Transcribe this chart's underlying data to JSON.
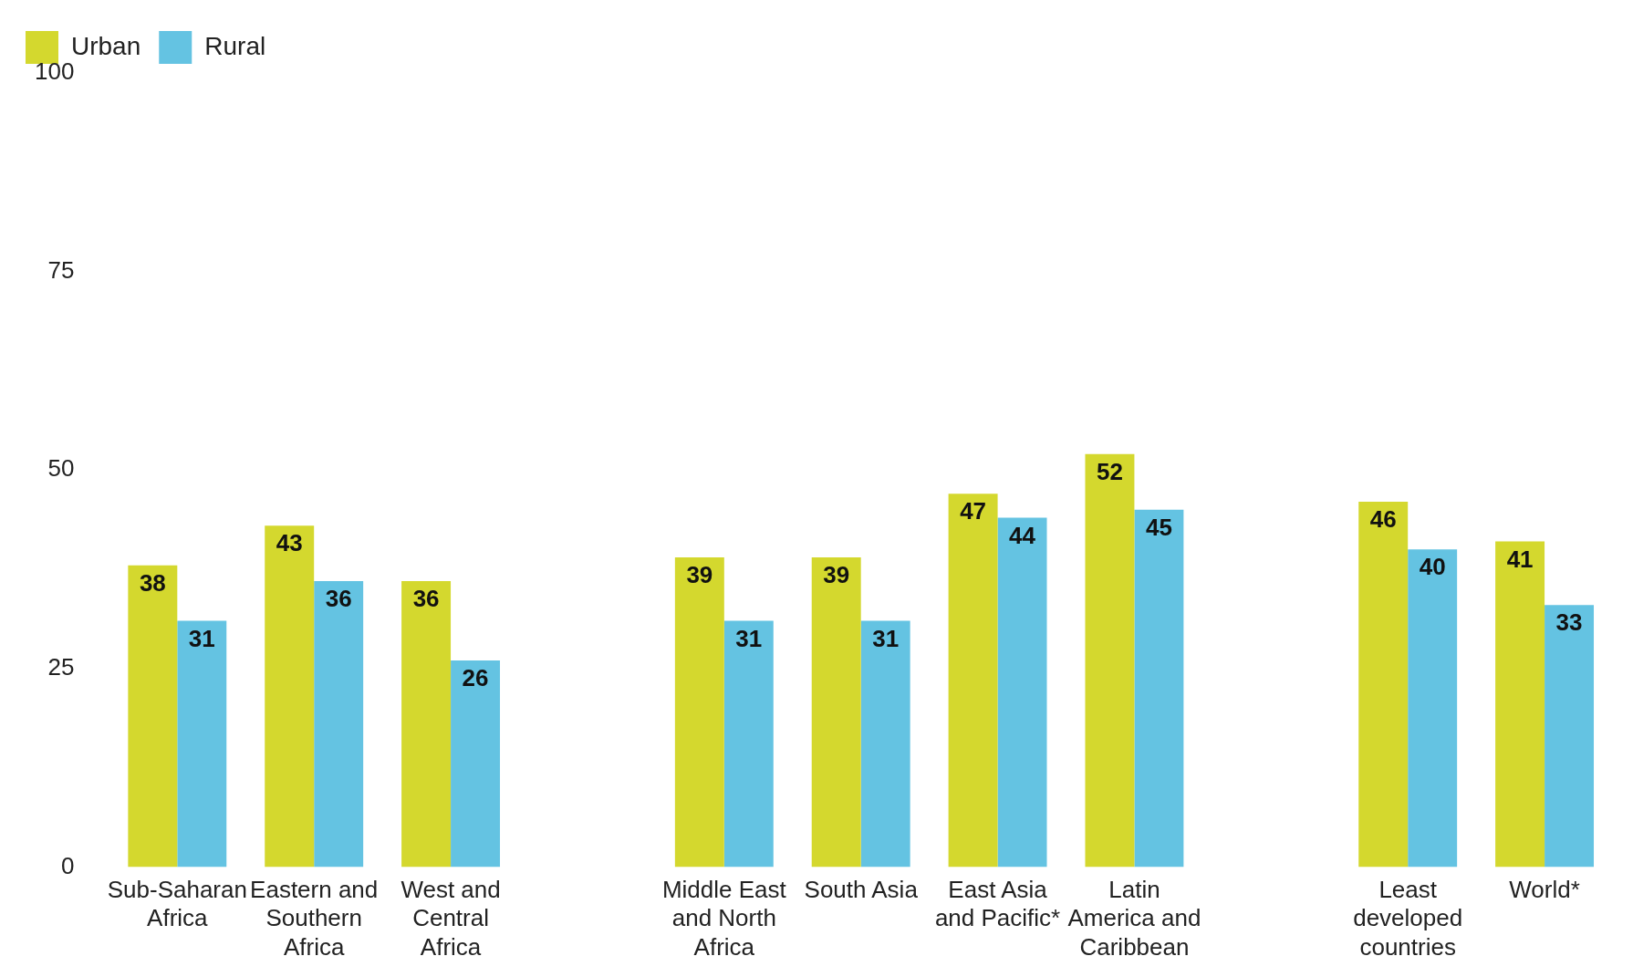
{
  "chart_data": {
    "type": "bar",
    "categories": [
      "Sub-Saharan Africa",
      "Eastern and Southern Africa",
      "West and Central Africa",
      null,
      "Middle East and North Africa",
      "South Asia",
      "East Asia and Pacific*",
      "Latin America and Caribbean",
      null,
      "Least developed countries",
      "World*"
    ],
    "series": [
      {
        "name": "Urban",
        "color": "#d4d82e",
        "values": [
          38,
          43,
          36,
          null,
          39,
          39,
          47,
          52,
          null,
          46,
          41
        ]
      },
      {
        "name": "Rural",
        "color": "#64c3e2",
        "values": [
          31,
          36,
          26,
          null,
          31,
          31,
          44,
          45,
          null,
          40,
          33
        ]
      }
    ],
    "ylim": [
      0,
      100
    ],
    "yticks": [
      0,
      25,
      50,
      75,
      100
    ],
    "grid": false,
    "legend": "top left",
    "data_labels": true
  }
}
